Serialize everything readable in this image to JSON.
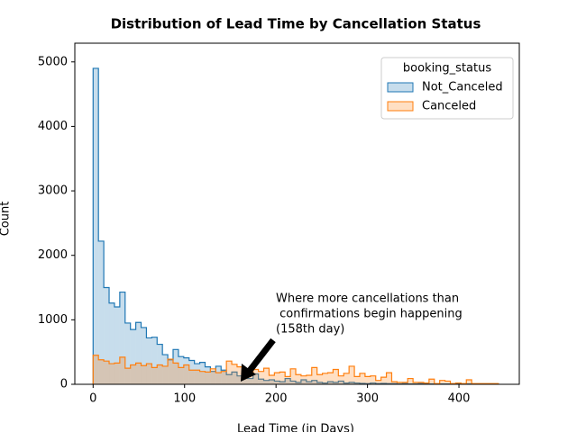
{
  "chart_data": {
    "type": "histogram",
    "title": "Distribution of Lead Time by Cancellation Status",
    "x_label": "Lead Time (in Days)",
    "y_label": "Count",
    "bins": [
      0,
      5.83,
      11.66,
      17.49,
      23.32,
      29.15,
      34.98,
      40.81,
      46.64,
      52.47,
      58.3,
      64.13,
      69.96,
      75.79,
      81.62,
      87.45,
      93.28,
      99.11,
      104.94,
      110.77,
      116.6,
      122.43,
      128.26,
      134.09,
      139.92,
      145.75,
      151.58,
      157.41,
      163.24,
      169.07,
      174.9,
      180.73,
      186.56,
      192.39,
      198.22,
      204.05,
      209.88,
      215.71,
      221.54,
      227.37,
      233.2,
      239.03,
      244.86,
      250.69,
      256.52,
      262.35,
      268.18,
      274.01,
      279.84,
      285.67,
      291.5,
      297.33,
      303.16,
      308.99,
      314.82,
      320.65,
      326.48,
      332.31,
      338.14,
      343.97,
      349.8,
      355.63,
      361.46,
      367.29,
      373.12,
      378.95,
      384.78,
      390.61,
      396.44,
      402.27,
      408.1,
      413.93,
      419.76,
      425.59,
      431.42,
      437.25,
      443.08
    ],
    "series": [
      {
        "name": "Not_Canceled",
        "color": "#1f77b4",
        "values": [
          4900,
          2220,
          1500,
          1260,
          1200,
          1430,
          950,
          850,
          960,
          880,
          720,
          730,
          620,
          460,
          380,
          540,
          430,
          410,
          370,
          320,
          340,
          270,
          200,
          280,
          220,
          150,
          190,
          130,
          110,
          90,
          160,
          80,
          60,
          70,
          50,
          40,
          90,
          50,
          30,
          70,
          40,
          60,
          30,
          20,
          40,
          30,
          50,
          20,
          30,
          20,
          15,
          10,
          20,
          10,
          15,
          10,
          10,
          5,
          10,
          5,
          5,
          10,
          5,
          5,
          5,
          5,
          5,
          5,
          5,
          5,
          5,
          5,
          5,
          5,
          5,
          5
        ]
      },
      {
        "name": "Canceled",
        "color": "#ff7f0e",
        "values": [
          450,
          380,
          360,
          320,
          330,
          420,
          250,
          300,
          330,
          290,
          320,
          260,
          300,
          280,
          390,
          330,
          260,
          300,
          220,
          220,
          200,
          190,
          240,
          180,
          200,
          360,
          310,
          270,
          150,
          190,
          230,
          200,
          250,
          140,
          180,
          190,
          120,
          240,
          150,
          130,
          140,
          260,
          150,
          170,
          180,
          230,
          130,
          170,
          280,
          120,
          170,
          120,
          130,
          60,
          110,
          180,
          40,
          30,
          30,
          90,
          30,
          30,
          20,
          80,
          10,
          60,
          50,
          10,
          20,
          10,
          70,
          10,
          10,
          10,
          10,
          10
        ]
      }
    ],
    "legend_title": "booking_status",
    "legend_position": "upper right",
    "xlim": [
      -20,
      466
    ],
    "ylim": [
      0,
      5290
    ],
    "xticks": [
      0,
      100,
      200,
      300,
      400
    ],
    "yticks": [
      0,
      1000,
      2000,
      3000,
      4000,
      5000
    ],
    "annotation": [
      "Where more cancellations than",
      " confirmations begin happening",
      "(158th day)"
    ]
  }
}
